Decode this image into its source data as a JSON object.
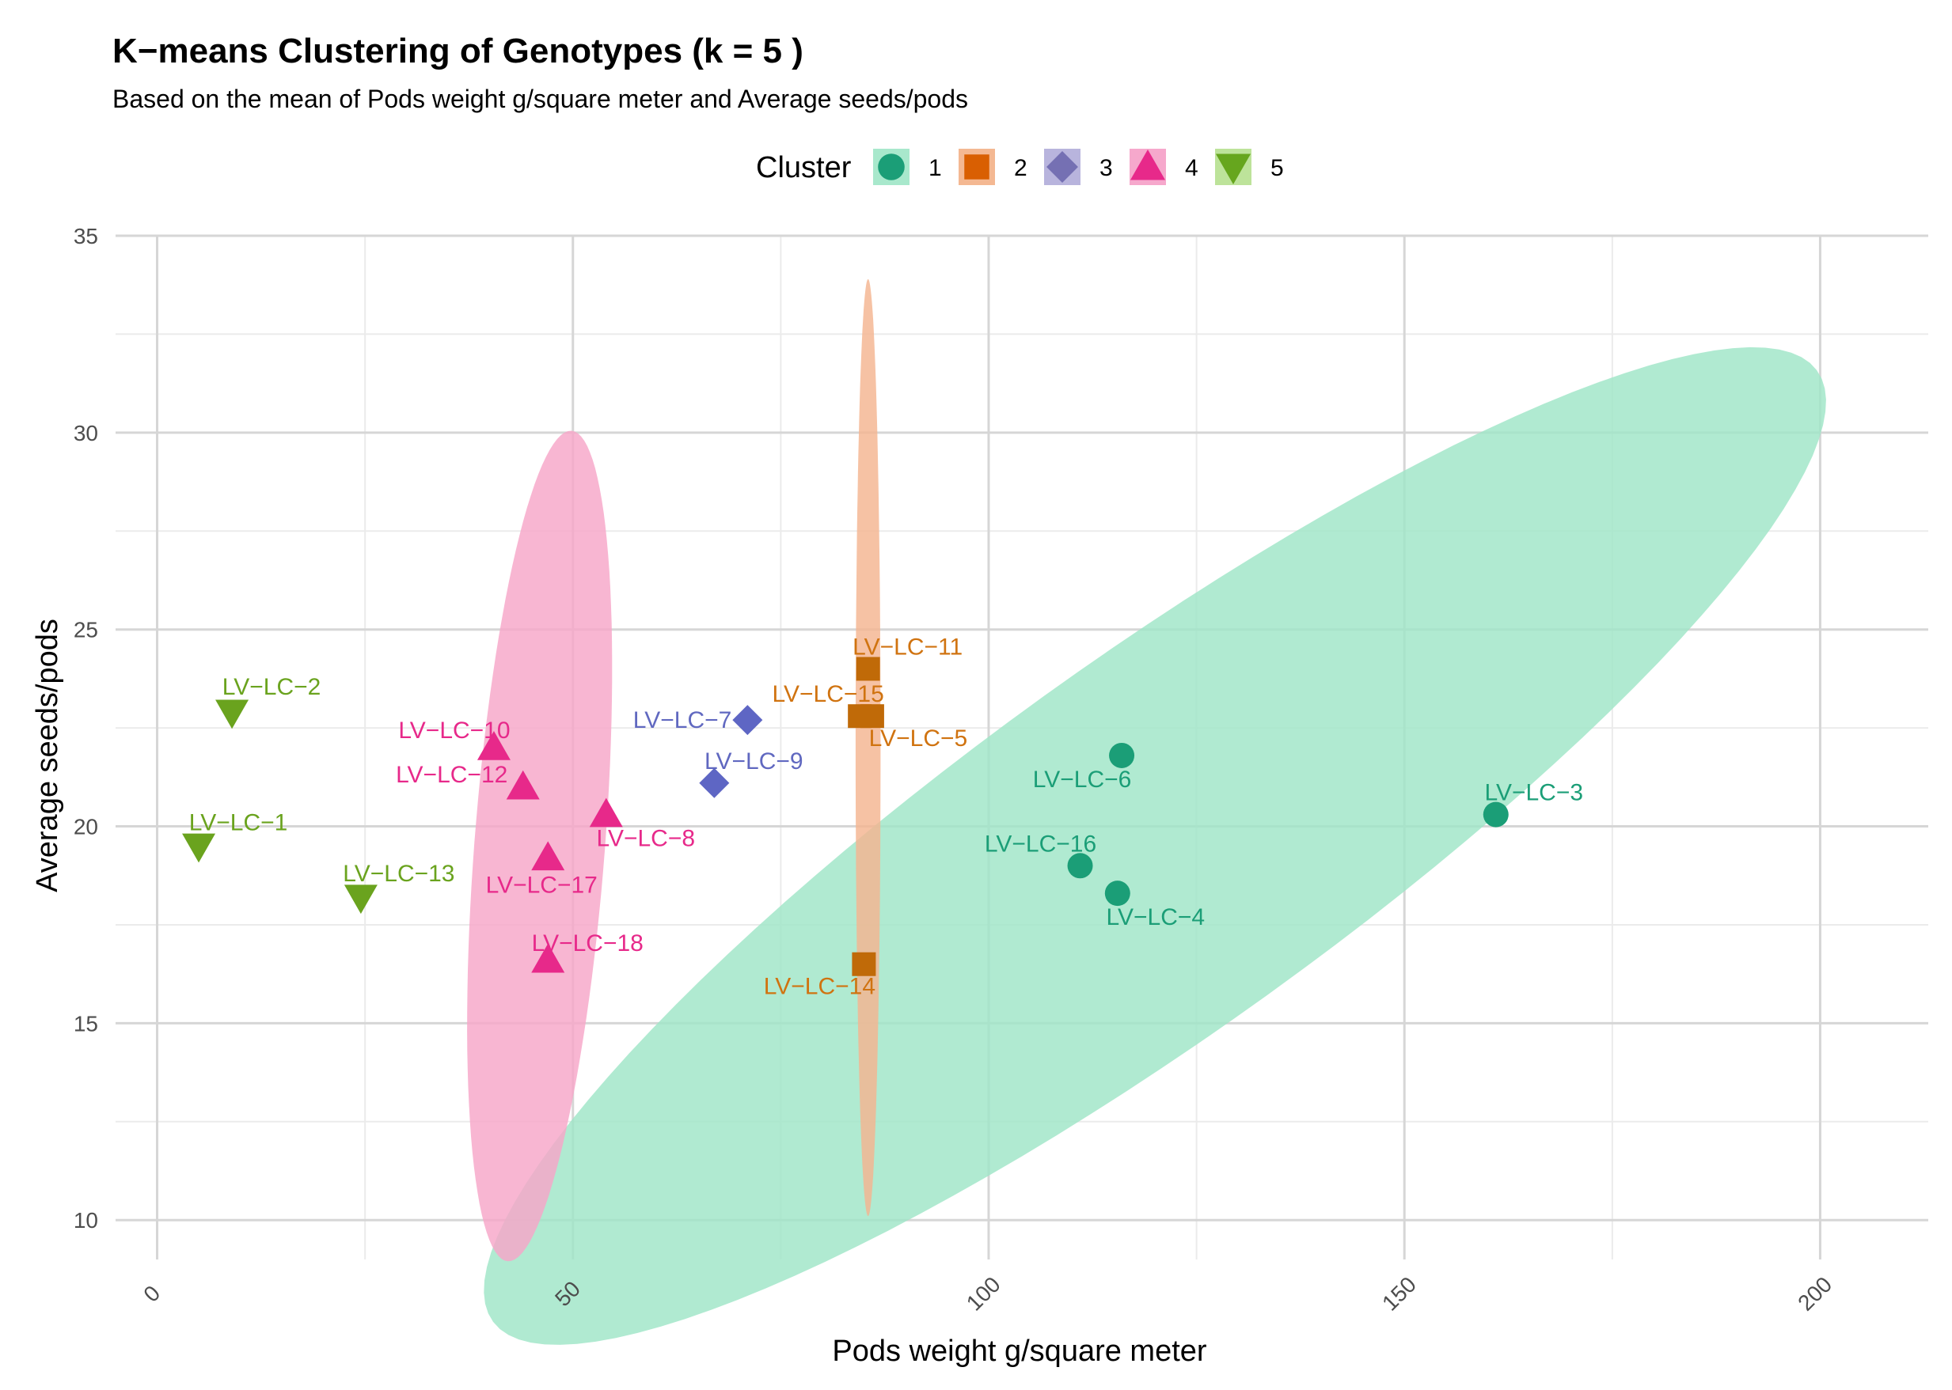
{
  "chart_data": {
    "type": "scatter",
    "title": "K−means Clustering of Genotypes (k = 5 )",
    "subtitle": "Based on the mean of Pods weight g/square meter and Average seeds/pods",
    "xlabel": "Pods weight g/square meter",
    "ylabel": "Average seeds/pods",
    "xlim": [
      -5,
      213
    ],
    "ylim": [
      9,
      35
    ],
    "x_ticks": [
      0,
      50,
      100,
      150,
      200
    ],
    "y_ticks": [
      10,
      15,
      20,
      25,
      30,
      35
    ],
    "legend": {
      "title": "Cluster",
      "position": "top",
      "entries": [
        {
          "label": "1",
          "color": "#1B9E77",
          "fill": "#A8E8CC",
          "shape": "circle"
        },
        {
          "label": "2",
          "color": "#D95F02",
          "fill": "#F4B892",
          "shape": "square"
        },
        {
          "label": "3",
          "color": "#7570B3",
          "fill": "#B8B4DD",
          "shape": "diamond"
        },
        {
          "label": "4",
          "color": "#E7298A",
          "fill": "#F6A8CC",
          "shape": "triangle-up"
        },
        {
          "label": "5",
          "color": "#66A61E",
          "fill": "#BDE39A",
          "shape": "triangle-down"
        }
      ]
    },
    "series": [
      {
        "name": "1",
        "color": "#1B9E77",
        "label_color": "#1B9E77",
        "shape": "circle",
        "points": [
          {
            "label": "LV−LC−3",
            "x": 161,
            "y": 20.3
          },
          {
            "label": "LV−LC−4",
            "x": 115.5,
            "y": 18.3
          },
          {
            "label": "LV−LC−6",
            "x": 116,
            "y": 21.8
          },
          {
            "label": "LV−LC−16",
            "x": 111,
            "y": 19.0
          }
        ]
      },
      {
        "name": "2",
        "color": "#C06A08",
        "label_color": "#D07310",
        "shape": "square",
        "points": [
          {
            "label": "LV−LC−5",
            "x": 86,
            "y": 22.8
          },
          {
            "label": "LV−LC−11",
            "x": 85.5,
            "y": 24.0
          },
          {
            "label": "LV−LC−14",
            "x": 85,
            "y": 16.5
          },
          {
            "label": "LV−LC−15",
            "x": 84.5,
            "y": 22.8
          }
        ]
      },
      {
        "name": "3",
        "color": "#5E66C4",
        "label_color": "#6068C0",
        "shape": "diamond",
        "points": [
          {
            "label": "LV−LC−7",
            "x": 71,
            "y": 22.7
          },
          {
            "label": "LV−LC−9",
            "x": 67,
            "y": 21.1
          }
        ]
      },
      {
        "name": "4",
        "color": "#E7298A",
        "label_color": "#E7298A",
        "shape": "triangle-up",
        "points": [
          {
            "label": "LV−LC−8",
            "x": 54,
            "y": 20.3
          },
          {
            "label": "LV−LC−10",
            "x": 40.5,
            "y": 22.0
          },
          {
            "label": "LV−LC−12",
            "x": 44,
            "y": 21.0
          },
          {
            "label": "LV−LC−17",
            "x": 47,
            "y": 19.2
          },
          {
            "label": "LV−LC−18",
            "x": 47,
            "y": 16.6
          }
        ]
      },
      {
        "name": "5",
        "color": "#6AA31E",
        "label_color": "#6AA31E",
        "shape": "triangle-down",
        "points": [
          {
            "label": "LV−LC−1",
            "x": 5,
            "y": 19.5
          },
          {
            "label": "LV−LC−2",
            "x": 9,
            "y": 22.9
          },
          {
            "label": "LV−LC−13",
            "x": 24.5,
            "y": 18.2
          }
        ]
      }
    ],
    "ellipses": [
      {
        "cluster": "1",
        "cx": 120,
        "cy": 19.5,
        "rx": 81.5,
        "ry": 5.7,
        "angle_deg": 8,
        "fill": "#9FE5C7"
      },
      {
        "cluster": "2",
        "cx": 85.5,
        "cy": 22.0,
        "rx": 1.5,
        "ry": 11.9,
        "angle_deg": 0,
        "fill": "#F4B590"
      },
      {
        "cluster": "4",
        "cx": 46,
        "cy": 19.5,
        "rx": 11.7,
        "ry": 7.1,
        "angle_deg": 57,
        "fill": "#F6A6C8"
      }
    ]
  }
}
